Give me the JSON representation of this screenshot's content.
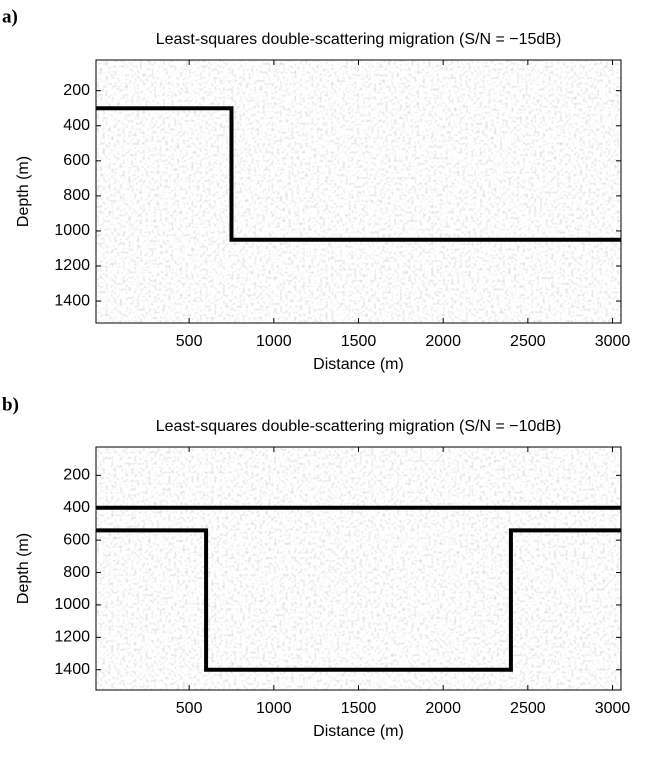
{
  "chart_data": [
    {
      "type": "line",
      "panel_label": "a)",
      "title": "Least-squares double-scattering migration (S/N = −15dB)",
      "x_label": "Distance (m)",
      "y_label": "Depth (m)",
      "xlim": [
        -50,
        3050
      ],
      "ylim": [
        25,
        1525
      ],
      "y_reversed": true,
      "xticks": [
        500,
        1000,
        1500,
        2000,
        2500,
        3000
      ],
      "yticks": [
        200,
        400,
        600,
        800,
        1000,
        1200,
        1400
      ],
      "series": [
        {
          "color": "#000000",
          "x": [
            -50,
            750,
            750,
            3050
          ],
          "values": [
            300,
            300,
            1050,
            1050
          ]
        }
      ]
    },
    {
      "type": "line",
      "panel_label": "b)",
      "title": "Least-squares double-scattering migration (S/N = −10dB)",
      "x_label": "Distance (m)",
      "y_label": "Depth (m)",
      "xlim": [
        -50,
        3050
      ],
      "ylim": [
        25,
        1525
      ],
      "y_reversed": true,
      "xticks": [
        500,
        1000,
        1500,
        2000,
        2500,
        3000
      ],
      "yticks": [
        200,
        400,
        600,
        800,
        1000,
        1200,
        1400
      ],
      "series": [
        {
          "color": "#000000",
          "x": [
            -50,
            3050
          ],
          "values": [
            400,
            400
          ]
        },
        {
          "color": "#000000",
          "x": [
            -50,
            600,
            600,
            2400,
            2400,
            3050
          ],
          "values": [
            540,
            540,
            1400,
            1400,
            540,
            540
          ]
        }
      ]
    }
  ]
}
